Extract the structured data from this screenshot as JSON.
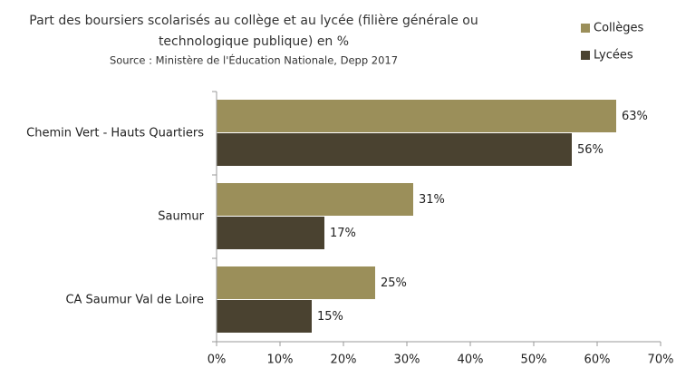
{
  "chart_data": {
    "type": "hbar",
    "title": [
      "Part des boursiers scolarisés au collège et au lycée (filière générale ou",
      "technologique publique) en %"
    ],
    "subtitle": "Source : Ministère de l'Éducation Nationale, Depp 2017",
    "categories": [
      "Chemin Vert - Hauts Quartiers",
      "Saumur",
      "CA Saumur Val de Loire"
    ],
    "series": [
      {
        "name": "Collèges",
        "color": "#9b8f5a",
        "values": [
          63,
          31,
          25
        ],
        "value_labels": [
          "63%",
          "31%",
          "25%"
        ]
      },
      {
        "name": "Lycées",
        "color": "#4a4230",
        "values": [
          56,
          17,
          15
        ],
        "value_labels": [
          "56%",
          "17%",
          "15%"
        ]
      }
    ],
    "xlim": [
      0,
      70
    ],
    "xticks": [
      {
        "value": 0,
        "label": "0%"
      },
      {
        "value": 10,
        "label": "10%"
      },
      {
        "value": 20,
        "label": "20%"
      },
      {
        "value": 30,
        "label": "30%"
      },
      {
        "value": 40,
        "label": "40%"
      },
      {
        "value": 50,
        "label": "50%"
      },
      {
        "value": 60,
        "label": "60%"
      },
      {
        "value": 70,
        "label": "70%"
      }
    ],
    "legend": "top-right"
  }
}
